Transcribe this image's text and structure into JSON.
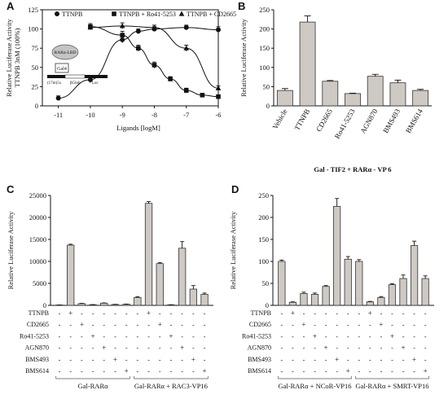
{
  "panels": {
    "A": {
      "letter": "A"
    },
    "B": {
      "letter": "B"
    },
    "C": {
      "letter": "C"
    },
    "D": {
      "letter": "D"
    }
  },
  "chart_data": [
    {
      "id": "A",
      "type": "line",
      "ylabel_lines": [
        "Relative Luciferase Activity",
        "TTNPB 3nM (100%)"
      ],
      "xlabel": "Ligands [logM]",
      "xlim": [
        -11.5,
        -6
      ],
      "ylim": [
        0,
        125
      ],
      "xticks": [
        -11,
        -10,
        -9,
        -8,
        -7,
        -6
      ],
      "xtick_labels": [
        "-11",
        "-10",
        "-9",
        "-8",
        "-7",
        "-6"
      ],
      "yticks": [
        0,
        25,
        50,
        75,
        100,
        125
      ],
      "ytick_labels": [
        "0",
        "25",
        "50",
        "75",
        "100",
        "125"
      ],
      "series": [
        {
          "name": "TTNPB",
          "marker": "circle",
          "x": [
            -11,
            -10,
            -9,
            -8.5,
            -8,
            -7,
            -6
          ],
          "y": [
            10,
            34,
            86,
            97,
            100,
            102,
            99
          ],
          "err": [
            3,
            4,
            4,
            3,
            3,
            3,
            4
          ]
        },
        {
          "name": "TTNPB + Ro41-5253",
          "marker": "square",
          "x": [
            -10,
            -9,
            -8.5,
            -8,
            -7.5,
            -7,
            -6.5,
            -6
          ],
          "y": [
            103,
            92,
            75,
            53,
            35,
            20,
            14,
            12
          ],
          "err": [
            4,
            5,
            4,
            4,
            3,
            3,
            2,
            2
          ]
        },
        {
          "name": "TTNPB + CD2665",
          "marker": "triangle",
          "x": [
            -10,
            -9,
            -8,
            -7,
            -6
          ],
          "y": [
            102,
            104,
            102,
            75,
            23
          ],
          "err": [
            3,
            4,
            3,
            4,
            3
          ]
        }
      ],
      "inset": {
        "box_label": "RARα-LBD",
        "gal_label": "Gal4",
        "promoter_label": "(17m)5x",
        "bglob_label": "βGlob",
        "luc_label": "Luc"
      }
    },
    {
      "id": "B",
      "type": "bar",
      "ylabel": "Relative Luciferase Activity",
      "xlabel": "Gal - TIF2 + RARα - VP 6",
      "ylim": [
        0,
        250
      ],
      "yticks": [
        0,
        50,
        100,
        150,
        200,
        250
      ],
      "ytick_labels": [
        "0",
        "50",
        "100",
        "150",
        "200",
        "250"
      ],
      "categories": [
        "Vehicle",
        "TTNPB",
        "CD2665",
        "Ro41-5253",
        "AGN870",
        "BMS493",
        "BMS614"
      ],
      "values": [
        40,
        218,
        64,
        32,
        77,
        60,
        40
      ],
      "err": [
        5,
        16,
        2,
        1,
        5,
        7,
        3
      ]
    },
    {
      "id": "C",
      "type": "bar",
      "ylabel": "Relative Luciferase Activity",
      "ylim": [
        0,
        25000
      ],
      "yticks": [
        0,
        5000,
        10000,
        15000,
        20000,
        25000
      ],
      "ytick_labels": [
        "0",
        "5000",
        "10000",
        "15000",
        "20000",
        "25000"
      ],
      "values": [
        80,
        13700,
        400,
        150,
        500,
        200,
        250,
        1800,
        23200,
        9500,
        120,
        13000,
        3700,
        2500
      ],
      "err": [
        20,
        200,
        60,
        30,
        60,
        30,
        40,
        150,
        400,
        200,
        30,
        1500,
        800,
        300
      ],
      "matrix_rows": [
        "TTNPB",
        "CD2665",
        "Ro41-5253",
        "AGN870",
        "BMS493",
        "BMS614"
      ],
      "matrix": [
        [
          "-",
          "+",
          "-",
          "-",
          "-",
          "-",
          "-",
          "-",
          "+",
          "-",
          "-",
          "-",
          "-",
          "-"
        ],
        [
          "-",
          "-",
          "+",
          "-",
          "-",
          "-",
          "-",
          "-",
          "-",
          "+",
          "-",
          "-",
          "-",
          "-"
        ],
        [
          "-",
          "-",
          "-",
          "+",
          "-",
          "-",
          "-",
          "-",
          "-",
          "-",
          "+",
          "-",
          "-",
          "-"
        ],
        [
          "-",
          "-",
          "-",
          "-",
          "+",
          "-",
          "-",
          "-",
          "-",
          "-",
          "-",
          "+",
          "-",
          "-"
        ],
        [
          "-",
          "-",
          "-",
          "-",
          "-",
          "+",
          "-",
          "-",
          "-",
          "-",
          "-",
          "-",
          "+",
          "-"
        ],
        [
          "-",
          "-",
          "-",
          "-",
          "-",
          "-",
          "+",
          "-",
          "-",
          "-",
          "-",
          "-",
          "-",
          "+"
        ]
      ],
      "groups": [
        {
          "label": "Gal-RARα",
          "start": 0,
          "end": 6
        },
        {
          "label": "Gal-RARα + RAC3-VP16",
          "start": 7,
          "end": 13
        }
      ]
    },
    {
      "id": "D",
      "type": "bar",
      "ylabel": "Relative Luciferase Activity",
      "ylim": [
        0,
        250
      ],
      "yticks": [
        0,
        50,
        100,
        150,
        200,
        250
      ],
      "ytick_labels": [
        "0",
        "50",
        "100",
        "150",
        "200",
        "250"
      ],
      "values": [
        100,
        7,
        27,
        25,
        43,
        225,
        105,
        100,
        8,
        18,
        47,
        61,
        136,
        61
      ],
      "err": [
        3,
        1,
        3,
        3,
        2,
        18,
        6,
        4,
        1,
        2,
        2,
        8,
        10,
        6
      ],
      "matrix_rows": [
        "TTNPB",
        "CD2665",
        "Ro41-5253",
        "AGN870",
        "BMS493",
        "BMS614"
      ],
      "matrix": [
        [
          "-",
          "+",
          "-",
          "-",
          "-",
          "-",
          "-",
          "-",
          "+",
          "-",
          "-",
          "-",
          "-",
          "-"
        ],
        [
          "-",
          "-",
          "+",
          "-",
          "-",
          "-",
          "-",
          "-",
          "-",
          "+",
          "-",
          "-",
          "-",
          "-"
        ],
        [
          "-",
          "-",
          "-",
          "+",
          "-",
          "-",
          "-",
          "-",
          "-",
          "-",
          "+",
          "-",
          "-",
          "-"
        ],
        [
          "-",
          "-",
          "-",
          "-",
          "+",
          "-",
          "-",
          "-",
          "-",
          "-",
          "-",
          "+",
          "-",
          "-"
        ],
        [
          "-",
          "-",
          "-",
          "-",
          "-",
          "+",
          "-",
          "-",
          "-",
          "-",
          "-",
          "-",
          "+",
          "-"
        ],
        [
          "-",
          "-",
          "-",
          "-",
          "-",
          "-",
          "+",
          "-",
          "-",
          "-",
          "-",
          "-",
          "-",
          "+"
        ]
      ],
      "groups": [
        {
          "label": "Gal-RARα + NCoR-VP16",
          "start": 0,
          "end": 6
        },
        {
          "label": "Gal-RARα + SMRT-VP16",
          "start": 7,
          "end": 13
        }
      ]
    }
  ]
}
